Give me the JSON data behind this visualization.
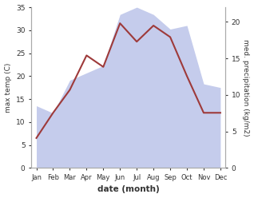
{
  "months": [
    "Jan",
    "Feb",
    "Mar",
    "Apr",
    "May",
    "Jun",
    "Jul",
    "Aug",
    "Sep",
    "Oct",
    "Nov",
    "Dec"
  ],
  "month_positions": [
    0,
    1,
    2,
    3,
    4,
    5,
    6,
    7,
    8,
    9,
    10,
    11
  ],
  "temperature": [
    6.5,
    12.0,
    17.0,
    24.5,
    22.0,
    31.5,
    27.5,
    31.0,
    28.5,
    20.0,
    12.0,
    12.0
  ],
  "precipitation": [
    8.5,
    7.5,
    12.0,
    13.0,
    14.0,
    21.0,
    22.0,
    21.0,
    19.0,
    19.5,
    11.5,
    11.0
  ],
  "temp_color": "#9e3a3a",
  "precip_fill_color": "#c5ccec",
  "temp_ylim": [
    0,
    35
  ],
  "precip_ylim": [
    0,
    22
  ],
  "precip_yticks": [
    0,
    5,
    10,
    15,
    20
  ],
  "temp_yticks": [
    0,
    5,
    10,
    15,
    20,
    25,
    30,
    35
  ],
  "xlabel": "date (month)",
  "ylabel_left": "max temp (C)",
  "ylabel_right": "med. precipitation (kg/m2)",
  "background_color": "#ffffff",
  "figsize": [
    3.18,
    2.48
  ],
  "dpi": 100
}
